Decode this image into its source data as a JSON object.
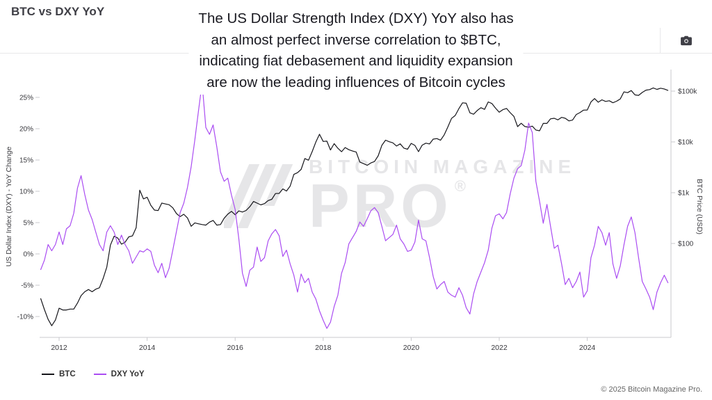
{
  "header": {
    "title": "BTC vs DXY YoY"
  },
  "annotation": {
    "lines": [
      "The US Dollar Strength Index (DXY) YoY also has",
      "an almost perfect inverse correlation to $BTC,",
      "indicating fiat debasement and liquidity expansion",
      "are now the leading influences of Bitcoin cycles"
    ]
  },
  "toolbar": {
    "camera_icon": "camera"
  },
  "watermark": {
    "line1": "BITCOIN MAGAZINE",
    "line2": "PRO",
    "registered": "®"
  },
  "legend": [
    {
      "label": "BTC",
      "color": "#15151a"
    },
    {
      "label": "DXY YoY",
      "color": "#aa4cf2"
    }
  ],
  "footer": {
    "copyright": "© 2025 Bitcoin Magazine Pro."
  },
  "chart_data": {
    "type": "line",
    "title": "BTC vs DXY YoY",
    "grid": false,
    "legend_position": "bottom-left",
    "x_axis": {
      "unit": "year",
      "range": [
        2011.55,
        2025.92
      ],
      "tick_values": [
        2012,
        2014,
        2016,
        2018,
        2020,
        2022,
        2024
      ],
      "tick_labels": [
        "2012",
        "2014",
        "2016",
        "2018",
        "2020",
        "2022",
        "2024"
      ]
    },
    "y_axis_left": {
      "label": "US Dollar Index (DXY) - YoY Change",
      "unit": "percent",
      "range": [
        -13.3,
        29.4
      ],
      "tick_values": [
        25,
        20,
        15,
        10,
        5,
        0,
        -5,
        -10
      ],
      "tick_labels": [
        "25%",
        "20%",
        "15%",
        "10%",
        "5%",
        "0%",
        "-5%",
        "-10%"
      ]
    },
    "y_axis_right": {
      "label": "BTC Price (USD)",
      "unit": "USD",
      "scale": "log",
      "tick_values": [
        100000,
        10000,
        1000,
        100
      ],
      "tick_labels": [
        "$100k",
        "$10k",
        "$1k",
        "$100"
      ]
    },
    "sampling": {
      "x_start": 2011.5833,
      "x_step_years": 0.0833333,
      "points": 172
    },
    "series": [
      {
        "name": "BTC",
        "color": "#15151a",
        "axis": "right",
        "values": [
          8.2,
          5.0,
          3.2,
          2.4,
          3.1,
          5.3,
          4.9,
          4.9,
          5.1,
          5.1,
          6.7,
          9.4,
          11.2,
          12.4,
          11.2,
          12.6,
          13.4,
          20.4,
          34.3,
          93,
          139,
          128,
          97,
          106,
          135,
          141,
          204,
          1120,
          755,
          815,
          565,
          455,
          445,
          625,
          600,
          580,
          505,
          388,
          338,
          376,
          318,
          218,
          254,
          244,
          236,
          230,
          263,
          284,
          230,
          236,
          314,
          377,
          430,
          368,
          437,
          416,
          448,
          531,
          673,
          624,
          575,
          610,
          701,
          742,
          963,
          970,
          1190,
          1080,
          1350,
          2290,
          2480,
          2875,
          4703,
          4360,
          6450,
          9920,
          14156,
          10220,
          10340,
          6930,
          9245,
          7500,
          6400,
          7750,
          7030,
          6625,
          6300,
          4017,
          3740,
          3460,
          3855,
          4105,
          5320,
          8560,
          10820,
          10080,
          9590,
          8300,
          9150,
          7550,
          7190,
          9350,
          8540,
          6440,
          8650,
          9450,
          9140,
          11350,
          11650,
          10780,
          13800,
          19700,
          29000,
          33110,
          45240,
          58800,
          57750,
          37330,
          35040,
          41500,
          47130,
          43790,
          61320,
          57000,
          46220,
          38480,
          43190,
          45540,
          37650,
          31790,
          19985,
          23290,
          20050,
          19430,
          20490,
          17165,
          16550,
          23130,
          23140,
          28470,
          29250,
          27220,
          30480,
          29230,
          25930,
          26960,
          34650,
          37720,
          42260,
          42580,
          61200,
          71330,
          60640,
          67500,
          62680,
          64620,
          58970,
          63330,
          70220,
          96450,
          93430,
          102400,
          84380,
          82550,
          94210,
          104600,
          107140,
          115760,
          108240,
          114050,
          110100,
          103500
        ]
      },
      {
        "name": "DXY YoY",
        "color": "#aa4cf2",
        "axis": "left",
        "values": [
          -2.5,
          -1.0,
          1.5,
          0.5,
          1.5,
          3.5,
          1.5,
          4.0,
          4.5,
          6.5,
          10.5,
          12.5,
          9.5,
          7.0,
          5.5,
          3.5,
          1.5,
          0.5,
          3.5,
          4.5,
          3.5,
          1.5,
          3.0,
          1.5,
          0.5,
          -1.5,
          -0.5,
          0.5,
          0.3,
          0.8,
          0.4,
          -1.8,
          -3.0,
          -1.5,
          -3.8,
          -2.3,
          0.6,
          3.6,
          6.6,
          8.1,
          10.6,
          13.9,
          18.2,
          22.8,
          27.3,
          20.2,
          19.1,
          20.6,
          17.1,
          13.1,
          11.6,
          12.1,
          9.4,
          7.1,
          2.4,
          -3.1,
          -5.2,
          -2.6,
          -2.1,
          1.1,
          -1.2,
          -0.6,
          2.1,
          3.2,
          3.9,
          2.9,
          -0.4,
          0.6,
          -1.6,
          -3.4,
          -6.1,
          -3.2,
          -4.6,
          -3.9,
          -6.1,
          -7.2,
          -9.1,
          -10.6,
          -11.9,
          -10.9,
          -8.4,
          -6.6,
          -3.1,
          -1.4,
          1.6,
          2.6,
          3.6,
          5.1,
          4.4,
          5.6,
          6.9,
          7.4,
          6.6,
          4.4,
          2.1,
          2.6,
          3.1,
          4.6,
          2.4,
          1.6,
          0.4,
          0.6,
          1.9,
          5.4,
          2.4,
          2.1,
          -0.6,
          -3.6,
          -5.6,
          -4.9,
          -4.4,
          -6.1,
          -6.6,
          -6.9,
          -5.4,
          -6.6,
          -8.6,
          -9.6,
          -6.4,
          -4.4,
          -2.9,
          -1.4,
          0.6,
          4.1,
          6.1,
          6.4,
          5.6,
          6.6,
          9.6,
          12.1,
          13.6,
          14.1,
          16.6,
          20.9,
          19.4,
          11.6,
          8.4,
          4.9,
          7.9,
          4.4,
          0.9,
          1.4,
          -1.6,
          -4.9,
          -3.9,
          -5.4,
          -4.4,
          -2.9,
          -6.9,
          -5.9,
          -0.6,
          1.4,
          4.4,
          3.4,
          1.4,
          3.4,
          -1.6,
          -3.9,
          -1.9,
          1.4,
          4.4,
          5.9,
          3.4,
          -0.6,
          -4.4,
          -5.6,
          -6.9,
          -8.9,
          -6.1,
          -4.6,
          -3.4,
          -4.6
        ]
      }
    ]
  }
}
